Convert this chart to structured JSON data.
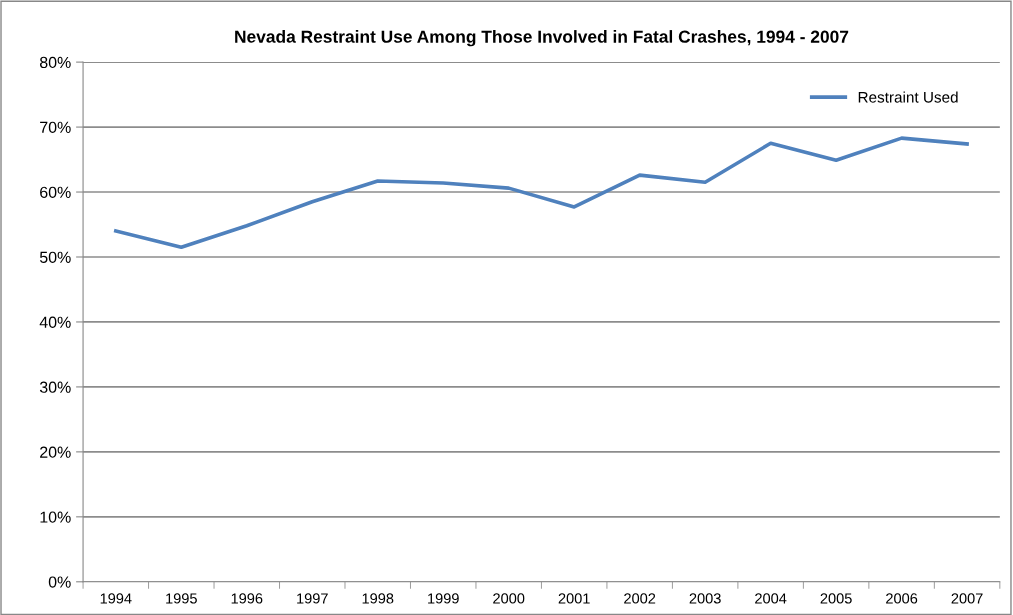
{
  "chart_data": {
    "type": "line",
    "title": "Nevada Restraint Use Among Those Involved in Fatal Crashes, 1994 - 2007",
    "categories": [
      "1994",
      "1995",
      "1996",
      "1997",
      "1998",
      "1999",
      "2000",
      "2001",
      "2002",
      "2003",
      "2004",
      "2005",
      "2006",
      "2007"
    ],
    "series": [
      {
        "name": "Restraint Used",
        "color": "#4f81bd",
        "values": [
          54.0,
          51.5,
          54.8,
          58.5,
          61.7,
          61.4,
          60.6,
          57.7,
          62.6,
          61.5,
          67.5,
          64.9,
          68.3,
          67.4
        ]
      }
    ],
    "ylim": [
      0,
      80
    ],
    "yticks": [
      {
        "value": 0,
        "label": "0%"
      },
      {
        "value": 10,
        "label": "10%"
      },
      {
        "value": 20,
        "label": "20%"
      },
      {
        "value": 30,
        "label": "30%"
      },
      {
        "value": 40,
        "label": "40%"
      },
      {
        "value": 50,
        "label": "50%"
      },
      {
        "value": 60,
        "label": "60%"
      },
      {
        "value": 70,
        "label": "70%"
      },
      {
        "value": 80,
        "label": "80%"
      }
    ],
    "grid": "y",
    "legend": "top right",
    "marker": "none",
    "line_style": "solid"
  }
}
